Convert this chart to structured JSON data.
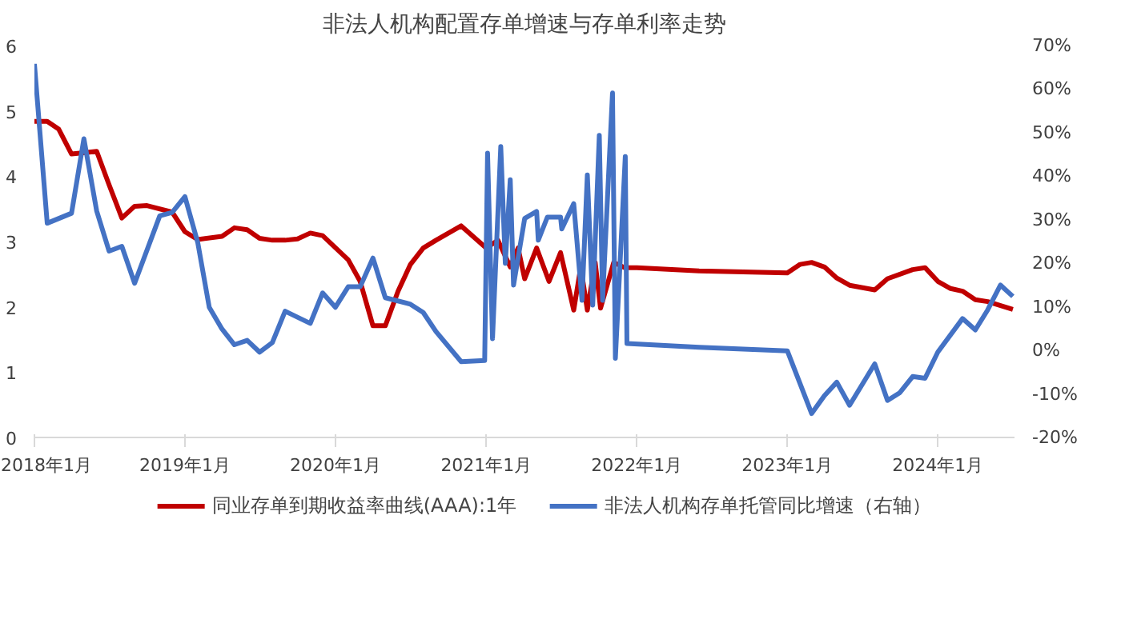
{
  "chart_data": {
    "type": "line",
    "title": "非法人机构配置存单增速与存单利率走势",
    "xlim": [
      "2018-01-01",
      "2024-07-05"
    ],
    "xticks": [
      {
        "value": "2018-01",
        "label": "2018年1月"
      },
      {
        "value": "2019-01",
        "label": "2019年1月"
      },
      {
        "value": "2020-01",
        "label": "2020年1月"
      },
      {
        "value": "2021-01",
        "label": "2021年1月"
      },
      {
        "value": "2022-01",
        "label": "2022年1月"
      },
      {
        "value": "2023-01",
        "label": "2023年1月"
      },
      {
        "value": "2024-01",
        "label": "2024年1月"
      }
    ],
    "ylim": [
      0,
      6
    ],
    "yticks": [
      0,
      1,
      2,
      3,
      4,
      5,
      6
    ],
    "y2lim": [
      -20,
      70
    ],
    "y2ticks": [
      {
        "value": -20,
        "label": "-20%"
      },
      {
        "value": -10,
        "label": "-10%"
      },
      {
        "value": 0,
        "label": "0%"
      },
      {
        "value": 10,
        "label": "10%"
      },
      {
        "value": 20,
        "label": "20%"
      },
      {
        "value": 30,
        "label": "30%"
      },
      {
        "value": 40,
        "label": "40%"
      },
      {
        "value": 50,
        "label": "50%"
      },
      {
        "value": 60,
        "label": "60%"
      },
      {
        "value": 70,
        "label": "70%"
      }
    ],
    "grid": false,
    "legend": "bottom",
    "marker": "none",
    "line_style": "solid",
    "series": [
      {
        "name": "同业存单到期收益率曲线(AAA):1年",
        "color": "#c00000",
        "x": [
          "2018-01-01",
          "2018-02-01",
          "2018-03-01",
          "2018-04-01",
          "2018-05-01",
          "2018-06-01",
          "2018-07-01",
          "2018-08-01",
          "2018-09-01",
          "2018-10-01",
          "2018-12-01",
          "2019-01-01",
          "2019-02-01",
          "2019-04-01",
          "2019-05-01",
          "2019-06-01",
          "2019-07-01",
          "2019-08-01",
          "2019-09-01",
          "2019-10-01",
          "2019-11-01",
          "2019-12-01",
          "2020-02-01",
          "2020-03-01",
          "2020-04-01",
          "2020-05-01",
          "2020-06-01",
          "2020-07-01",
          "2020-08-01",
          "2020-09-01",
          "2020-11-01",
          "2021-01-01",
          "2021-01-29",
          "2021-02-28",
          "2021-03-19",
          "2021-04-04",
          "2021-05-03",
          "2021-06-02",
          "2021-06-30",
          "2021-08-01",
          "2021-08-18",
          "2021-09-03",
          "2021-09-22",
          "2021-10-05",
          "2021-11-06",
          "2021-12-02",
          "2022-01-01",
          "2022-06-01",
          "2023-01-01",
          "2023-02-01",
          "2023-03-01",
          "2023-04-01",
          "2023-05-01",
          "2023-06-01",
          "2023-08-01",
          "2023-09-01",
          "2023-11-01",
          "2023-12-01",
          "2024-01-01",
          "2024-02-01",
          "2024-03-01",
          "2024-04-01",
          "2024-05-01",
          "2024-07-01"
        ],
        "values": [
          4.84,
          4.84,
          4.72,
          4.34,
          4.36,
          4.38,
          3.87,
          3.36,
          3.54,
          3.55,
          3.45,
          3.15,
          3.03,
          3.08,
          3.21,
          3.18,
          3.05,
          3.02,
          3.02,
          3.04,
          3.13,
          3.09,
          2.72,
          2.39,
          1.71,
          1.71,
          2.24,
          2.65,
          2.9,
          3.02,
          3.24,
          2.9,
          3.02,
          2.61,
          2.9,
          2.43,
          2.9,
          2.39,
          2.83,
          1.95,
          2.61,
          1.95,
          2.68,
          1.98,
          2.68,
          2.6,
          2.6,
          2.55,
          2.52,
          2.65,
          2.68,
          2.61,
          2.44,
          2.33,
          2.26,
          2.43,
          2.57,
          2.6,
          2.39,
          2.28,
          2.24,
          2.11,
          2.08,
          1.96
        ]
      },
      {
        "name": "非法人机构存单托管同比增速（右轴）",
        "color": "#4472c4",
        "axis": "y2",
        "x": [
          "2018-01-01",
          "2018-02-01",
          "2018-04-01",
          "2018-05-01",
          "2018-06-01",
          "2018-07-01",
          "2018-08-01",
          "2018-09-01",
          "2018-11-01",
          "2018-12-01",
          "2019-01-01",
          "2019-02-01",
          "2019-03-01",
          "2019-04-01",
          "2019-05-01",
          "2019-06-01",
          "2019-07-01",
          "2019-08-01",
          "2019-09-01",
          "2019-11-01",
          "2019-12-01",
          "2020-01-01",
          "2020-02-01",
          "2020-03-01",
          "2020-04-01",
          "2020-05-01",
          "2020-07-01",
          "2020-08-01",
          "2020-09-01",
          "2020-11-01",
          "2020-12-28",
          "2021-01-04",
          "2021-01-16",
          "2021-02-05",
          "2021-02-16",
          "2021-02-28",
          "2021-03-08",
          "2021-04-04",
          "2021-05-03",
          "2021-05-07",
          "2021-05-29",
          "2021-06-30",
          "2021-07-03",
          "2021-08-01",
          "2021-08-21",
          "2021-09-03",
          "2021-09-16",
          "2021-10-02",
          "2021-10-10",
          "2021-11-03",
          "2021-11-10",
          "2021-12-04",
          "2021-12-08",
          "2022-06-01",
          "2023-01-01",
          "2023-03-01",
          "2023-04-01",
          "2023-05-01",
          "2023-06-01",
          "2023-08-01",
          "2023-09-01",
          "2023-10-01",
          "2023-11-01",
          "2023-12-01",
          "2024-01-01",
          "2024-03-01",
          "2024-04-01",
          "2024-05-01",
          "2024-06-01",
          "2024-07-01"
        ],
        "values": [
          65.8,
          29.2,
          31.5,
          48.6,
          32,
          22.8,
          23.9,
          15.4,
          30.9,
          31.7,
          35.3,
          24.8,
          9.9,
          4.9,
          1.3,
          2.3,
          -0.4,
          1.8,
          9,
          6.2,
          13.2,
          9.9,
          14.6,
          14.6,
          21.2,
          12.1,
          10.6,
          8.7,
          4.3,
          -2.6,
          -2.3,
          45.3,
          2.7,
          46.8,
          20,
          39.2,
          15,
          30.3,
          31.9,
          25.3,
          30.6,
          30.6,
          27.9,
          33.7,
          11.5,
          40.3,
          10.4,
          49.4,
          11.5,
          59.1,
          -1.8,
          44.5,
          1.6,
          0.7,
          -0.1,
          -14.5,
          -10.4,
          -7.3,
          -12.6,
          -3.1,
          -11.5,
          -9.7,
          -6,
          -6.4,
          -0.4,
          7.3,
          4.7,
          9.3,
          15,
          12.4
        ]
      }
    ]
  }
}
